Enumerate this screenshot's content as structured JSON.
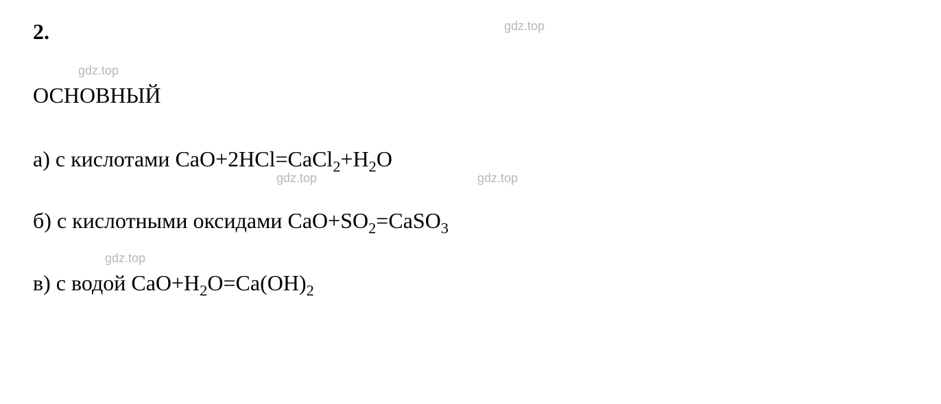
{
  "question_number": "2.",
  "heading": "ОСНОВНЫЙ",
  "items": {
    "a": {
      "label": "а) с кислотами",
      "equation_parts": [
        "CaO+2HCl=CaCl",
        "2",
        "+H",
        "2",
        "O"
      ]
    },
    "b": {
      "label": "б) с кислотными оксидами",
      "equation_parts": [
        "CaO+SO",
        "2",
        "=CaSO",
        "3"
      ]
    },
    "c": {
      "label": "в) с водой",
      "equation_parts": [
        "CaO+H",
        "2",
        "O=Ca(OH)",
        "2"
      ]
    }
  },
  "watermark_text": "gdz.top",
  "colors": {
    "text": "#000000",
    "watermark": "#b8b8b8",
    "background": "#ffffff"
  },
  "font_sizes": {
    "main": 32,
    "watermark": 18
  }
}
